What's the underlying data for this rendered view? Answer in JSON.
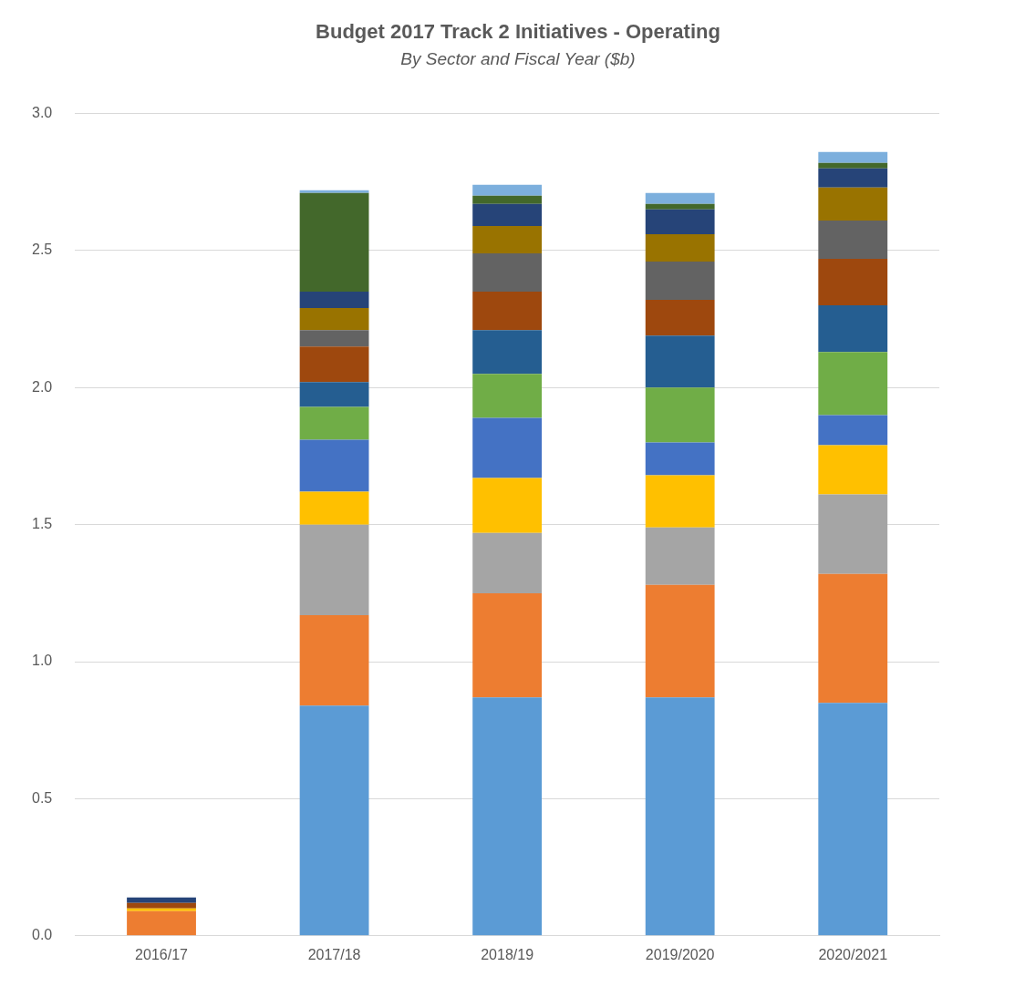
{
  "chart_data": {
    "type": "bar",
    "title": "Budget 2017 Track 2 Initiatives - Operating",
    "subtitle": "By Sector and Fiscal Year ($b)",
    "stacked": true,
    "grid": "y",
    "legend": false,
    "categories": [
      "2016/17",
      "2017/18",
      "2018/19",
      "2019/2020",
      "2020/2021"
    ],
    "ylim": [
      0,
      3
    ],
    "yticks": [
      {
        "value": 0,
        "label": "0.0"
      },
      {
        "value": 0.5,
        "label": "0.5"
      },
      {
        "value": 1,
        "label": "1.0"
      },
      {
        "value": 1.5,
        "label": "1.5"
      },
      {
        "value": 2,
        "label": "2.0"
      },
      {
        "value": 2.5,
        "label": "2.5"
      },
      {
        "value": 3,
        "label": "3.0"
      }
    ],
    "series": [
      {
        "color": "#5b9bd5",
        "values": [
          0,
          0.84,
          0.87,
          0.87,
          0.85
        ]
      },
      {
        "color": "#ed7d31",
        "values": [
          0.09,
          0.33,
          0.38,
          0.41,
          0.47
        ]
      },
      {
        "color": "#a5a5a5",
        "values": [
          0,
          0.33,
          0.22,
          0.21,
          0.29
        ]
      },
      {
        "color": "#ffc000",
        "values": [
          0.01,
          0.12,
          0.2,
          0.19,
          0.18
        ]
      },
      {
        "color": "#4472c4",
        "values": [
          0,
          0.19,
          0.22,
          0.12,
          0.11
        ]
      },
      {
        "color": "#70ad47",
        "values": [
          0,
          0.12,
          0.16,
          0.2,
          0.23
        ]
      },
      {
        "color": "#255e91",
        "values": [
          0,
          0.09,
          0.16,
          0.19,
          0.17
        ]
      },
      {
        "color": "#9e480e",
        "values": [
          0.02,
          0.13,
          0.14,
          0.13,
          0.17
        ]
      },
      {
        "color": "#636363",
        "values": [
          0,
          0.06,
          0.14,
          0.14,
          0.14
        ]
      },
      {
        "color": "#997300",
        "values": [
          0,
          0.08,
          0.1,
          0.1,
          0.12
        ]
      },
      {
        "color": "#264478",
        "values": [
          0.02,
          0.06,
          0.08,
          0.09,
          0.07
        ]
      },
      {
        "color": "#43682b",
        "values": [
          0,
          0.36,
          0.03,
          0.02,
          0.02
        ]
      },
      {
        "color": "#7cafdd",
        "values": [
          0,
          0.01,
          0.04,
          0.04,
          0.04
        ]
      }
    ]
  }
}
